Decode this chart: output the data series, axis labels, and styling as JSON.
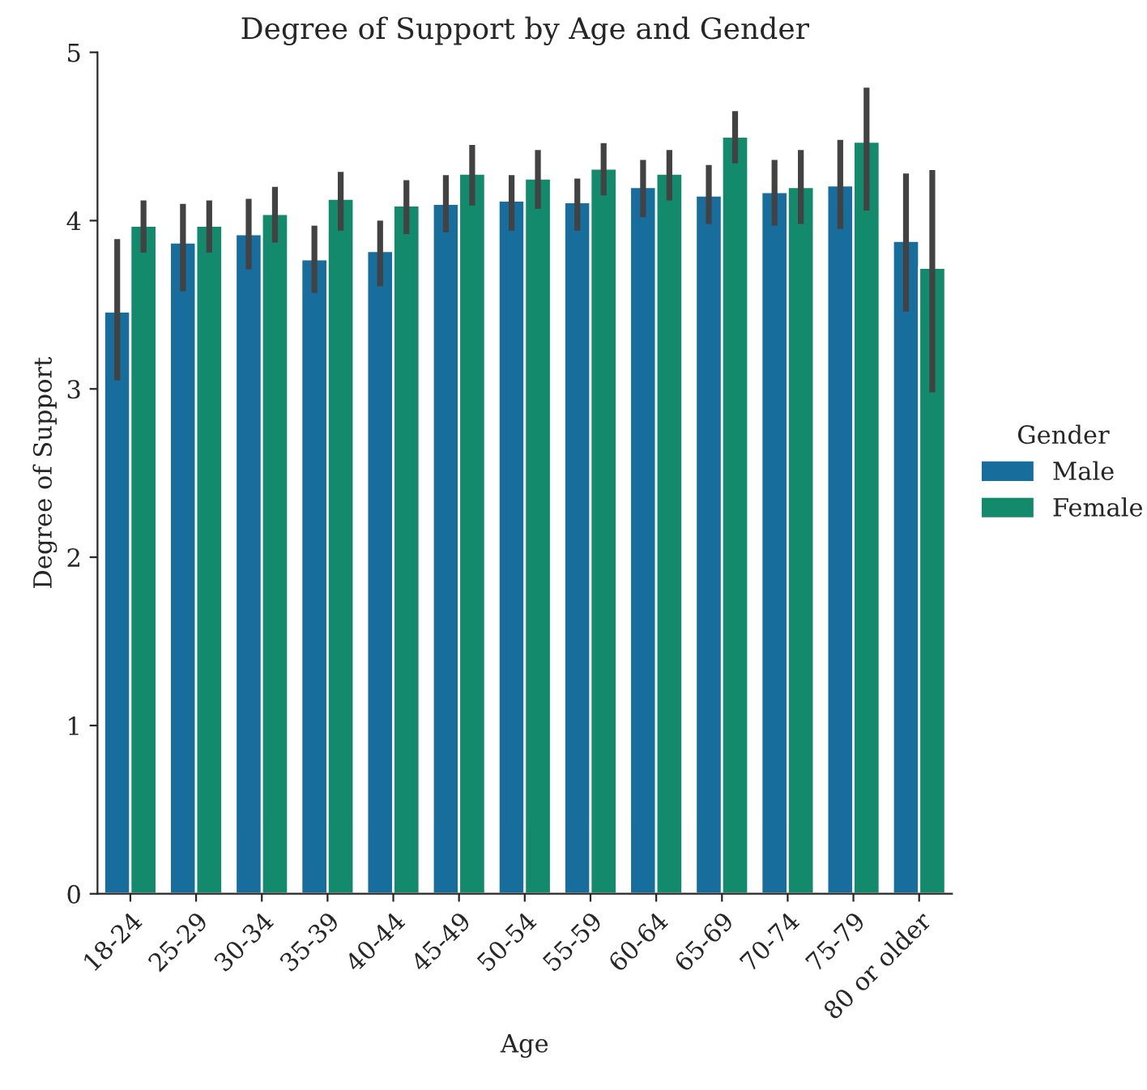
{
  "chart_data": {
    "type": "bar",
    "title": "Degree of Support by Age and Gender",
    "xlabel": "Age",
    "ylabel": "Degree of Support",
    "legend_title": "Gender",
    "legend": "right",
    "grid": false,
    "categories": [
      "18-24",
      "25-29",
      "30-34",
      "35-39",
      "40-44",
      "45-49",
      "50-54",
      "55-59",
      "60-64",
      "65-69",
      "70-74",
      "75-79",
      "80 or older"
    ],
    "ylim": [
      0,
      5
    ],
    "yticks": [
      0,
      1,
      2,
      3,
      4,
      5
    ],
    "series": [
      {
        "name": "Male",
        "color": "#176d9c",
        "values": [
          3.46,
          3.87,
          3.92,
          3.77,
          3.82,
          4.1,
          4.12,
          4.11,
          4.2,
          4.15,
          4.17,
          4.21,
          3.88
        ],
        "errors": [
          [
            3.05,
            3.89
          ],
          [
            3.58,
            4.1
          ],
          [
            3.71,
            4.13
          ],
          [
            3.57,
            3.97
          ],
          [
            3.61,
            4.0
          ],
          [
            3.93,
            4.27
          ],
          [
            3.94,
            4.27
          ],
          [
            3.94,
            4.25
          ],
          [
            4.02,
            4.36
          ],
          [
            3.98,
            4.33
          ],
          [
            3.97,
            4.36
          ],
          [
            3.95,
            4.48
          ],
          [
            3.46,
            4.28
          ]
        ]
      },
      {
        "name": "Female",
        "color": "#138a6b",
        "values": [
          3.97,
          3.97,
          4.04,
          4.13,
          4.09,
          4.28,
          4.25,
          4.31,
          4.28,
          4.5,
          4.2,
          4.47,
          3.72
        ],
        "errors": [
          [
            3.81,
            4.12
          ],
          [
            3.81,
            4.12
          ],
          [
            3.87,
            4.2
          ],
          [
            3.94,
            4.29
          ],
          [
            3.92,
            4.24
          ],
          [
            4.09,
            4.45
          ],
          [
            4.07,
            4.42
          ],
          [
            4.15,
            4.46
          ],
          [
            4.12,
            4.42
          ],
          [
            4.34,
            4.65
          ],
          [
            3.98,
            4.42
          ],
          [
            4.06,
            4.79
          ],
          [
            2.98,
            4.3
          ]
        ]
      }
    ]
  }
}
